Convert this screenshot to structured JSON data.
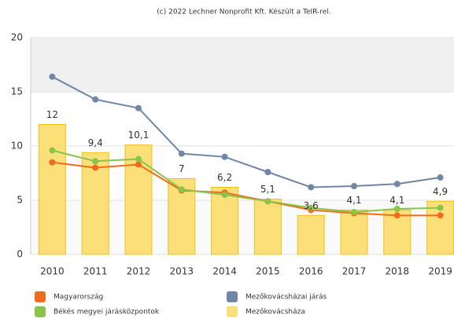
{
  "chart_data": {
    "type": "bar_line",
    "title": "(c) 2022 Lechner Nonprofit Kft. Készült a TeIR-rel.",
    "categories": [
      "2010",
      "2011",
      "2012",
      "2013",
      "2014",
      "2015",
      "2016",
      "2017",
      "2018",
      "2019"
    ],
    "series": [
      {
        "name": "Magyarország",
        "type": "line",
        "color": "#f26a1b",
        "values": [
          8.5,
          8.0,
          8.3,
          5.9,
          5.7,
          4.9,
          4.1,
          3.8,
          3.6,
          3.6
        ]
      },
      {
        "name": "Mezőkovácsházai járás",
        "type": "line",
        "color": "#6f86a6",
        "values": [
          16.4,
          14.3,
          13.5,
          9.3,
          9.0,
          7.6,
          6.2,
          6.3,
          6.5,
          7.1
        ]
      },
      {
        "name": "Békés megyei járásközpontok",
        "type": "line",
        "color": "#8cc34b",
        "values": [
          9.6,
          8.6,
          8.8,
          6.0,
          5.5,
          4.9,
          4.3,
          3.9,
          4.2,
          4.3
        ]
      },
      {
        "name": "Mezőkovácsháza",
        "type": "bar",
        "color": "#fbe07a",
        "values": [
          12,
          9.4,
          10.1,
          7,
          6.2,
          5.1,
          3.6,
          4.1,
          4.1,
          4.9
        ],
        "value_labels": [
          "12",
          "9,4",
          "10,1",
          "7",
          "6,2",
          "5,1",
          "3,6",
          "4,1",
          "4,1",
          "4,9"
        ]
      }
    ],
    "ylim": [
      0,
      20
    ],
    "yticks": [
      0,
      5,
      10,
      15,
      20
    ],
    "grid": true
  }
}
